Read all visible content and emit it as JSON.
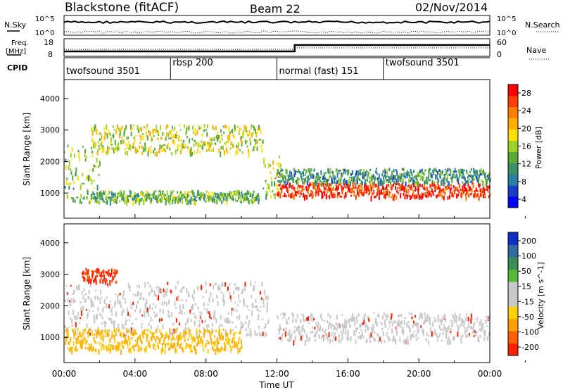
{
  "header": {
    "station": "Blackstone (fitACF)",
    "beam": "Beam 22",
    "date": "02/Nov/2014"
  },
  "top_panels": {
    "nsky_label": "N.Sky",
    "nsky_ticks": [
      "10^5",
      "10^0"
    ],
    "nsearch_label": "N.Search",
    "nsearch_ticks": [
      "10^5",
      "10^0"
    ],
    "freq_label": "Freq.",
    "freq_unit": "[MHz]",
    "freq_ticks": [
      "18",
      "8"
    ],
    "nave_label": "Nave",
    "nave_ticks": [
      "60",
      "0"
    ],
    "cpid_label": "CPID",
    "cpid_segments": [
      {
        "name": "twofsound 3501",
        "start": 0,
        "end": 6
      },
      {
        "name": "rbsp 200",
        "start": 6,
        "end": 12
      },
      {
        "name": "normal (fast) 151",
        "start": 12,
        "end": 18
      },
      {
        "name": "twofsound 3501",
        "start": 18,
        "end": 24
      }
    ]
  },
  "colors": {
    "power_scale": [
      "#0000ff",
      "#1a3ec8",
      "#2a7fa0",
      "#3d8f6a",
      "#5aaa3a",
      "#9fd12d",
      "#ffe000",
      "#ffb000",
      "#ff8000",
      "#ff4000",
      "#ff0000"
    ],
    "velocity_scale": [
      "#1030c8",
      "#2f6aa0",
      "#3c8c55",
      "#54b93a",
      "#c8c8c8",
      "#c8c8c8",
      "#ffd000",
      "#ffa000",
      "#ff6000",
      "#ff2000"
    ]
  },
  "chart_data": [
    {
      "type": "heatmap",
      "panel": "power",
      "ylabel": "Slant Range [km]",
      "xlim": [
        0,
        24
      ],
      "ylim": [
        200,
        4600
      ],
      "yticks": [
        "1000",
        "2000",
        "3000",
        "4000"
      ],
      "colorbar_label": "Power [dB]",
      "colorbar_ticks": [
        "28",
        "24",
        "20",
        "16",
        "12",
        "8",
        "4"
      ],
      "colorbar_range": [
        0,
        32
      ],
      "bands": [
        {
          "t0": 0.0,
          "t1": 2.0,
          "r0": 700,
          "r1": 2600,
          "level": 0.45
        },
        {
          "t0": 1.5,
          "t1": 11.2,
          "r0": 2300,
          "r1": 3200,
          "level": 0.55
        },
        {
          "t0": 1.5,
          "t1": 11.0,
          "r0": 750,
          "r1": 1100,
          "level": 0.4
        },
        {
          "t0": 11.2,
          "t1": 12.2,
          "r0": 900,
          "r1": 2200,
          "level": 0.5
        },
        {
          "t0": 12.0,
          "t1": 24.0,
          "r0": 900,
          "r1": 1350,
          "level": 0.95
        },
        {
          "t0": 12.0,
          "t1": 24.0,
          "r0": 1350,
          "r1": 1800,
          "level": 0.3
        }
      ]
    },
    {
      "type": "heatmap",
      "panel": "velocity",
      "ylabel": "Slant Range [km]",
      "xlabel": "Time UT",
      "xlim": [
        0,
        24
      ],
      "ylim": [
        200,
        4600
      ],
      "xticks": [
        "00:00",
        "04:00",
        "08:00",
        "12:00",
        "16:00",
        "20:00",
        "00:00"
      ],
      "yticks": [
        "1000",
        "2000",
        "3000",
        "4000"
      ],
      "colorbar_label": "Velocity [m s^-1]",
      "colorbar_ticks": [
        "200",
        "100",
        "50",
        "15",
        "-15",
        "-50",
        "-100",
        "-200"
      ],
      "colorbar_range": [
        -250,
        250
      ],
      "bands": [
        {
          "t0": 0.0,
          "t1": 11.5,
          "r0": 1100,
          "r1": 2800,
          "velocity": 0
        },
        {
          "t0": 1.0,
          "t1": 3.0,
          "r0": 2800,
          "r1": 3200,
          "velocity": -220
        },
        {
          "t0": 0.0,
          "t1": 10.0,
          "r0": 600,
          "r1": 1300,
          "velocity": -60
        },
        {
          "t0": 12.0,
          "t1": 24.0,
          "r0": 900,
          "r1": 1800,
          "velocity": 0
        }
      ]
    }
  ]
}
